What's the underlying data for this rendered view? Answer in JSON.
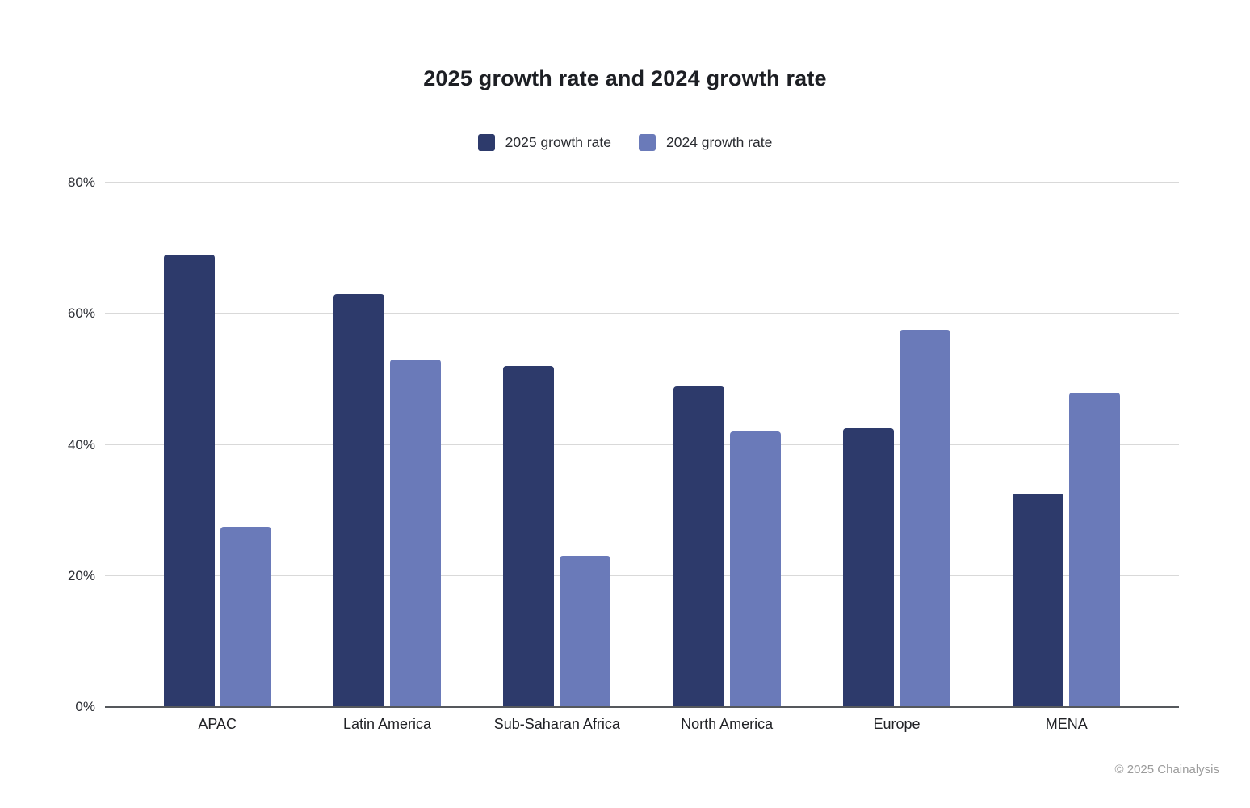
{
  "header": {
    "title": "2025 growth rate and 2024 growth rate"
  },
  "legend": {
    "items": [
      {
        "label": "2025 growth rate",
        "color": "#2d3a6b"
      },
      {
        "label": "2024 growth rate",
        "color": "#6a7ab9"
      }
    ]
  },
  "footer": {
    "copyright": "© 2025 Chainalysis"
  },
  "chart_data": {
    "type": "bar",
    "title": "2025 growth rate and 2024 growth rate",
    "categories": [
      "APAC",
      "Latin America",
      "Sub-Saharan Africa",
      "North America",
      "Europe",
      "MENA"
    ],
    "series": [
      {
        "name": "2025 growth rate",
        "color": "#2d3a6b",
        "values": [
          69,
          63,
          52,
          49,
          42.5,
          32.5
        ]
      },
      {
        "name": "2024 growth rate",
        "color": "#6a7ab9",
        "values": [
          27.5,
          53,
          23,
          42,
          57.5,
          48
        ]
      }
    ],
    "xlabel": "",
    "ylabel": "",
    "ylim": [
      0,
      80
    ],
    "yticks": [
      0,
      20,
      40,
      60,
      80
    ],
    "ytick_labels": [
      "0%",
      "20%",
      "40%",
      "60%",
      "80%"
    ],
    "grid": true,
    "legend_position": "top",
    "gridline_color": "#d9d9d9",
    "axis_color": "#55585c"
  }
}
